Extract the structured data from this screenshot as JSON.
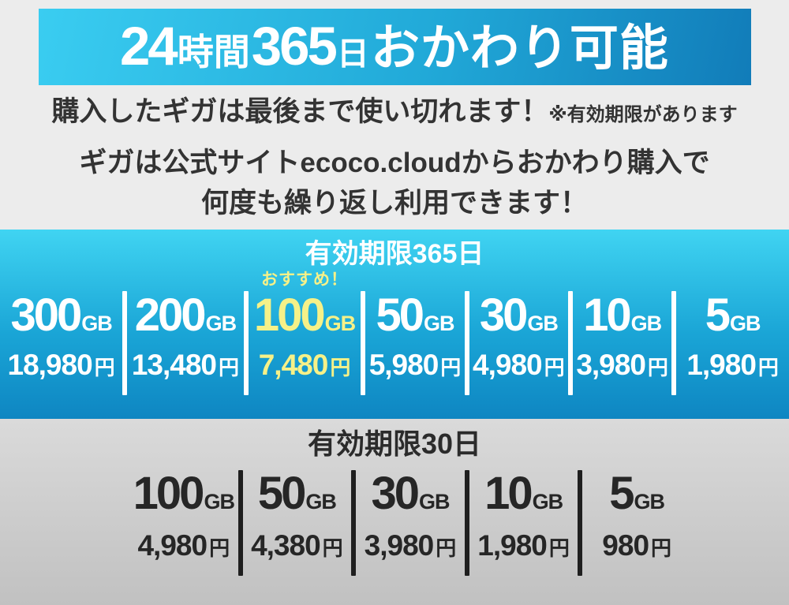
{
  "banner": {
    "hours": "24",
    "hours_unit": "時間",
    "days": "365",
    "days_unit": "日",
    "refill": "おかわり可能"
  },
  "intro": {
    "line1_main": "購入したギガは最後まで使い切れます！",
    "line1_note": "※有効期限があります",
    "line2": "ギガは公式サイトecoco.cloudからおかわり購入で",
    "line3": "何度も繰り返し利用できます！"
  },
  "units": {
    "gb": "GB",
    "yen": "円"
  },
  "plans_365": {
    "header": "有効期限365日",
    "recommended_label": "おすすめ！",
    "items": [
      {
        "gb": "300",
        "price": "18,980",
        "highlight": false
      },
      {
        "gb": "200",
        "price": "13,480",
        "highlight": false
      },
      {
        "gb": "100",
        "price": "7,480",
        "highlight": true
      },
      {
        "gb": "50",
        "price": "5,980",
        "highlight": false
      },
      {
        "gb": "30",
        "price": "4,980",
        "highlight": false
      },
      {
        "gb": "10",
        "price": "3,980",
        "highlight": false
      },
      {
        "gb": "5",
        "price": "1,980",
        "highlight": false
      }
    ]
  },
  "plans_30": {
    "header": "有効期限30日",
    "items": [
      {
        "gb": "100",
        "price": "4,980"
      },
      {
        "gb": "50",
        "price": "4,380"
      },
      {
        "gb": "30",
        "price": "3,980"
      },
      {
        "gb": "10",
        "price": "1,980"
      },
      {
        "gb": "5",
        "price": "980"
      }
    ]
  },
  "colors": {
    "banner_gradient_start": "#3acdf1",
    "banner_gradient_end": "#117cb9",
    "plans365_gradient_start": "#40d4f2",
    "plans365_gradient_end": "#0e86c2",
    "plans30_gradient_start": "#dadada",
    "plans30_gradient_end": "#c1c1c1",
    "highlight_yellow": "#f6f188",
    "text_dark": "#333333",
    "divider_light": "#ffffff",
    "divider_dark": "#1f1f1f"
  }
}
